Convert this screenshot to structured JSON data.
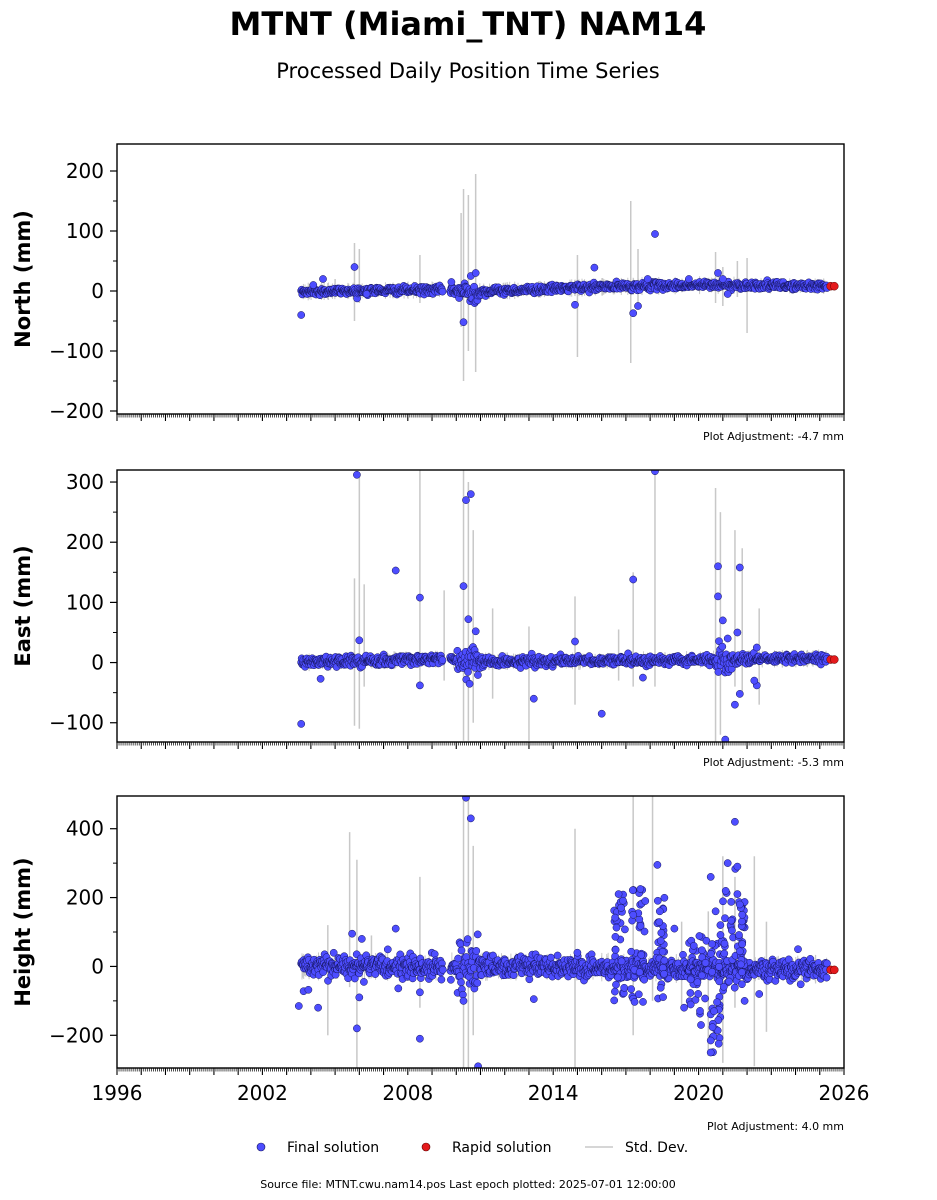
{
  "header": {
    "title": "MTNT (Miami_TNT) NAM14",
    "subtitle": "Processed Daily Position Time Series"
  },
  "legend": {
    "placement": "bottom-center",
    "items": [
      {
        "label": "Final solution",
        "color": "#4d4dff",
        "marker": "circle"
      },
      {
        "label": "Rapid solution",
        "color": "#e41a1c",
        "marker": "circle"
      },
      {
        "label": "Std. Dev.",
        "color": "#c8c8c8",
        "marker": "line"
      }
    ]
  },
  "footer": {
    "source": "Source file: MTNT.cwu.nam14.pos  Last epoch plotted: 2025-07-01 12:00:00"
  },
  "colors": {
    "final": "#4d4dff",
    "final_edge": "#14145a",
    "rapid": "#e41a1c",
    "stddev": "#c8c8c8"
  },
  "chart_data": [
    {
      "type": "scatter",
      "panel": "north",
      "ylabel": "North (mm)",
      "ylim": [
        -205,
        245
      ],
      "yticks": [
        200,
        100,
        0,
        -100,
        -200
      ],
      "ytick_labels": [
        "200",
        "100",
        "0",
        "−100",
        "−200"
      ],
      "xlim": [
        1996,
        2026
      ],
      "grid": false,
      "adjustment": "Plot Adjustment: -4.7 mm",
      "trend": [
        [
          2003.6,
          -1
        ],
        [
          2009.4,
          2
        ],
        [
          2010.5,
          -2
        ],
        [
          2016,
          7
        ],
        [
          2020.5,
          10
        ],
        [
          2025.3,
          8
        ]
      ],
      "scatter": 3,
      "outliers": [
        [
          2003.6,
          -40
        ],
        [
          2004.1,
          10
        ],
        [
          2004.5,
          20
        ],
        [
          2005.8,
          40
        ],
        [
          2006.3,
          -5
        ],
        [
          2009.8,
          15
        ],
        [
          2010.3,
          -52
        ],
        [
          2010.6,
          25
        ],
        [
          2010.8,
          30
        ],
        [
          2014.9,
          -23
        ],
        [
          2015.7,
          39
        ],
        [
          2017.3,
          -37
        ],
        [
          2017.5,
          -25
        ],
        [
          2017.9,
          20
        ],
        [
          2018.2,
          95
        ],
        [
          2019.6,
          20
        ],
        [
          2020.8,
          30
        ],
        [
          2021.0,
          20
        ],
        [
          2021.2,
          -5
        ]
      ],
      "rapid": [
        [
          2025.45,
          8
        ],
        [
          2025.6,
          8
        ]
      ],
      "stddev": [
        [
          2005.0,
          -10,
          20
        ],
        [
          2005.8,
          -50,
          80
        ],
        [
          2006.0,
          -20,
          70
        ],
        [
          2008.5,
          -20,
          60
        ],
        [
          2010.2,
          -60,
          130
        ],
        [
          2010.3,
          -150,
          170
        ],
        [
          2010.5,
          -100,
          160
        ],
        [
          2010.8,
          -135,
          195
        ],
        [
          2015.0,
          -110,
          60
        ],
        [
          2017.2,
          -120,
          150
        ],
        [
          2017.5,
          -20,
          70
        ],
        [
          2020.7,
          -20,
          65
        ],
        [
          2021.0,
          -25,
          40
        ],
        [
          2022.0,
          -70,
          55
        ],
        [
          2021.6,
          -10,
          50
        ]
      ],
      "n_points": 950
    },
    {
      "type": "scatter",
      "panel": "east",
      "ylabel": "East (mm)",
      "ylim": [
        -132,
        320
      ],
      "yticks": [
        300,
        200,
        100,
        0,
        -100
      ],
      "ytick_labels": [
        "300",
        "200",
        "100",
        "0",
        "−100"
      ],
      "xlim": [
        1996,
        2026
      ],
      "grid": false,
      "adjustment": "Plot Adjustment: -5.3 mm",
      "trend": [
        [
          2003.6,
          0
        ],
        [
          2009.4,
          6
        ],
        [
          2010.5,
          2
        ],
        [
          2016,
          3
        ],
        [
          2020.5,
          5
        ],
        [
          2025.3,
          7
        ]
      ],
      "scatter": 4,
      "outliers": [
        [
          2003.6,
          -102
        ],
        [
          2004.4,
          -27
        ],
        [
          2005.9,
          312
        ],
        [
          2006.0,
          37
        ],
        [
          2007.5,
          153
        ],
        [
          2008.5,
          108
        ],
        [
          2008.5,
          -38
        ],
        [
          2010.3,
          127
        ],
        [
          2010.4,
          270
        ],
        [
          2010.6,
          280
        ],
        [
          2010.5,
          72
        ],
        [
          2010.8,
          52
        ],
        [
          2013.2,
          -60
        ],
        [
          2014.9,
          35
        ],
        [
          2016.0,
          -85
        ],
        [
          2017.3,
          138
        ],
        [
          2018.2,
          318
        ],
        [
          2017.7,
          -25
        ],
        [
          2020.8,
          160
        ],
        [
          2020.8,
          110
        ],
        [
          2021.0,
          70
        ],
        [
          2021.2,
          40
        ],
        [
          2021.5,
          -70
        ],
        [
          2021.6,
          50
        ],
        [
          2021.7,
          158
        ],
        [
          2021.7,
          -52
        ],
        [
          2022.4,
          -38
        ],
        [
          2022.4,
          25
        ],
        [
          2022.3,
          -30
        ],
        [
          2021.1,
          -128
        ]
      ],
      "rapid": [
        [
          2025.45,
          5
        ],
        [
          2025.6,
          5
        ]
      ],
      "stddev": [
        [
          2005.8,
          -105,
          140
        ],
        [
          2006.0,
          -110,
          310
        ],
        [
          2006.2,
          -40,
          130
        ],
        [
          2008.5,
          -40,
          320
        ],
        [
          2009.5,
          -30,
          120
        ],
        [
          2010.3,
          -130,
          320
        ],
        [
          2010.5,
          -130,
          300
        ],
        [
          2010.7,
          -100,
          220
        ],
        [
          2011.5,
          -60,
          90
        ],
        [
          2013.0,
          -130,
          60
        ],
        [
          2014.9,
          -70,
          110
        ],
        [
          2016.7,
          -30,
          55
        ],
        [
          2017.3,
          -40,
          150
        ],
        [
          2018.2,
          -40,
          320
        ],
        [
          2020.7,
          -132,
          290
        ],
        [
          2020.9,
          -120,
          250
        ],
        [
          2021.5,
          -40,
          220
        ],
        [
          2021.8,
          -50,
          190
        ],
        [
          2022.5,
          -70,
          90
        ]
      ],
      "n_points": 950
    },
    {
      "type": "scatter",
      "panel": "height",
      "ylabel": "Height (mm)",
      "ylim": [
        -295,
        495
      ],
      "yticks": [
        400,
        200,
        0,
        -200
      ],
      "ytick_labels": [
        "400",
        "200",
        "0",
        "−200"
      ],
      "xlim": [
        1996,
        2026
      ],
      "xticks": [
        1996,
        2002,
        2008,
        2014,
        2020,
        2026
      ],
      "xtick_labels": [
        "1996",
        "2002",
        "2008",
        "2014",
        "2020",
        "2026"
      ],
      "grid": false,
      "adjustment": "Plot Adjustment: 4.0 mm",
      "trend": [
        [
          2003.6,
          0
        ],
        [
          2009.4,
          0
        ],
        [
          2010.5,
          0
        ],
        [
          2016,
          -2
        ],
        [
          2020.5,
          -8
        ],
        [
          2025.3,
          -8
        ]
      ],
      "scatter": 15,
      "outliers": [
        [
          2003.5,
          -115
        ],
        [
          2003.7,
          -72
        ],
        [
          2003.9,
          -68
        ],
        [
          2004.3,
          -120
        ],
        [
          2005.7,
          95
        ],
        [
          2005.9,
          -180
        ],
        [
          2006.0,
          -90
        ],
        [
          2006.1,
          80
        ],
        [
          2007.5,
          110
        ],
        [
          2008.5,
          -210
        ],
        [
          2008.5,
          -75
        ],
        [
          2010.4,
          490
        ],
        [
          2010.6,
          430
        ],
        [
          2010.3,
          -100
        ],
        [
          2010.9,
          -290
        ],
        [
          2013.2,
          -95
        ],
        [
          2015.0,
          40
        ],
        [
          2016.7,
          210
        ],
        [
          2016.8,
          170
        ],
        [
          2017.3,
          150
        ],
        [
          2017.6,
          225
        ],
        [
          2017.8,
          190
        ],
        [
          2018.3,
          295
        ],
        [
          2018.4,
          160
        ],
        [
          2019.0,
          110
        ],
        [
          2019.4,
          -120
        ],
        [
          2019.8,
          60
        ],
        [
          2020.1,
          -170
        ],
        [
          2020.5,
          -250
        ],
        [
          2020.5,
          -215
        ],
        [
          2020.5,
          260
        ],
        [
          2020.7,
          160
        ],
        [
          2020.9,
          120
        ],
        [
          2021.2,
          300
        ],
        [
          2021.5,
          420
        ],
        [
          2021.6,
          290
        ],
        [
          2021.6,
          210
        ],
        [
          2021.7,
          180
        ],
        [
          2021.8,
          150
        ],
        [
          2021.8,
          65
        ],
        [
          2021.9,
          -100
        ],
        [
          2022.5,
          -80
        ],
        [
          2024.1,
          50
        ]
      ],
      "cluster_bursts": [
        [
          2016.5,
          2017.0,
          -100,
          220
        ],
        [
          2017.2,
          2017.8,
          -110,
          230
        ],
        [
          2018.2,
          2018.6,
          -100,
          200
        ],
        [
          2019.6,
          2020.4,
          -140,
          110
        ],
        [
          2020.5,
          2020.9,
          -250,
          70
        ],
        [
          2020.9,
          2021.6,
          -100,
          300
        ],
        [
          2021.6,
          2021.9,
          -60,
          190
        ]
      ],
      "rapid": [
        [
          2025.45,
          -10
        ],
        [
          2025.6,
          -10
        ]
      ],
      "stddev": [
        [
          2004.7,
          -200,
          120
        ],
        [
          2005.6,
          -60,
          390
        ],
        [
          2005.9,
          -300,
          310
        ],
        [
          2006.5,
          -30,
          90
        ],
        [
          2008.5,
          -120,
          260
        ],
        [
          2010.3,
          -295,
          495
        ],
        [
          2010.5,
          -295,
          495
        ],
        [
          2010.7,
          -200,
          350
        ],
        [
          2014.9,
          -300,
          400
        ],
        [
          2017.3,
          -200,
          495
        ],
        [
          2018.1,
          -100,
          495
        ],
        [
          2019.3,
          -120,
          130
        ],
        [
          2020.4,
          -260,
          160
        ],
        [
          2021.0,
          -280,
          320
        ],
        [
          2021.5,
          -120,
          260
        ],
        [
          2022.3,
          -290,
          320
        ],
        [
          2022.8,
          -190,
          130
        ]
      ],
      "n_points": 1100
    }
  ]
}
